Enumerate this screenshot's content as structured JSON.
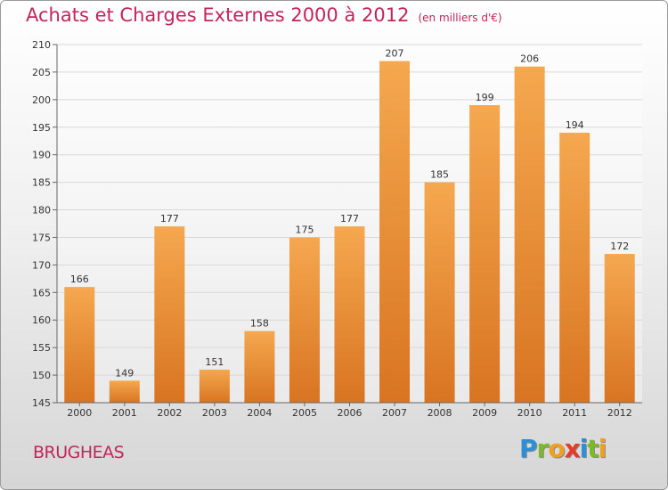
{
  "header": {
    "title": "Achats et Charges Externes 2000 à 2012",
    "unit": "(en milliers d'€)"
  },
  "footer": {
    "commune": "BRUGHEAS",
    "logo_letters": [
      {
        "ch": "P",
        "color": "#2f8fd6"
      },
      {
        "ch": "r",
        "color": "#7cb829"
      },
      {
        "ch": "o",
        "color": "#f0a020"
      },
      {
        "ch": "x",
        "color": "#e43c2a"
      },
      {
        "ch": "i",
        "color": "#2f8fd6"
      },
      {
        "ch": "t",
        "color": "#7cb829"
      },
      {
        "ch": "i",
        "color": "#f0a020"
      }
    ]
  },
  "colors": {
    "title": "#c4245a",
    "bar_top": "#f5a84f",
    "bar_bottom": "#d87422",
    "grid": "#d8d8d8",
    "axis": "#666666"
  },
  "chart_data": {
    "type": "bar",
    "categories": [
      "2000",
      "2001",
      "2002",
      "2003",
      "2004",
      "2005",
      "2006",
      "2007",
      "2008",
      "2009",
      "2010",
      "2011",
      "2012"
    ],
    "values": [
      166,
      149,
      177,
      151,
      158,
      175,
      177,
      207,
      185,
      199,
      206,
      194,
      172
    ],
    "ylim": [
      145,
      210
    ],
    "yticks": [
      145,
      150,
      155,
      160,
      165,
      170,
      175,
      180,
      185,
      190,
      195,
      200,
      205,
      210
    ],
    "grid": true,
    "legend": "none"
  }
}
